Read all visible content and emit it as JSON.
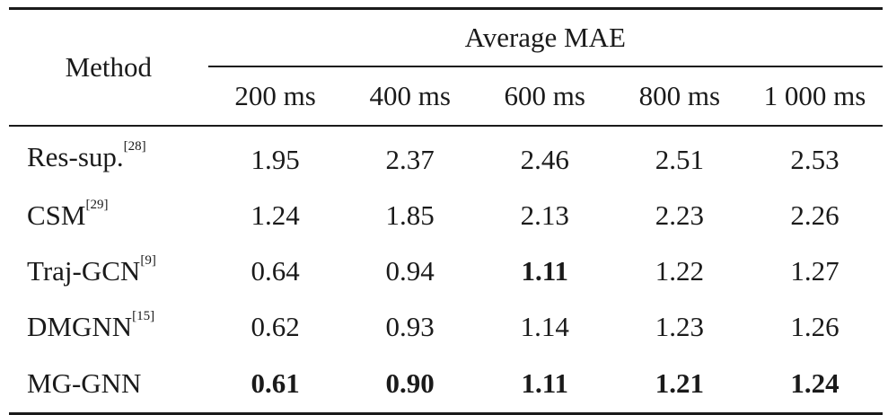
{
  "table": {
    "header": {
      "method": "Method",
      "group": "Average MAE",
      "columns": [
        "200 ms",
        "400 ms",
        "600 ms",
        "800 ms",
        "1 000 ms"
      ]
    },
    "rows": [
      {
        "method": "Res-sup.",
        "ref": "[28]",
        "values": [
          "1.95",
          "2.37",
          "2.46",
          "2.51",
          "2.53"
        ],
        "bold": [
          false,
          false,
          false,
          false,
          false
        ]
      },
      {
        "method": "CSM",
        "ref": "[29]",
        "values": [
          "1.24",
          "1.85",
          "2.13",
          "2.23",
          "2.26"
        ],
        "bold": [
          false,
          false,
          false,
          false,
          false
        ]
      },
      {
        "method": "Traj-GCN",
        "ref": "[9]",
        "values": [
          "0.64",
          "0.94",
          "1.11",
          "1.22",
          "1.27"
        ],
        "bold": [
          false,
          false,
          true,
          false,
          false
        ]
      },
      {
        "method": "DMGNN",
        "ref": "[15]",
        "values": [
          "0.62",
          "0.93",
          "1.14",
          "1.23",
          "1.26"
        ],
        "bold": [
          false,
          false,
          false,
          false,
          false
        ]
      },
      {
        "method": "MG-GNN",
        "ref": "",
        "values": [
          "0.61",
          "0.90",
          "1.11",
          "1.21",
          "1.24"
        ],
        "bold": [
          true,
          true,
          true,
          true,
          true
        ]
      }
    ]
  }
}
